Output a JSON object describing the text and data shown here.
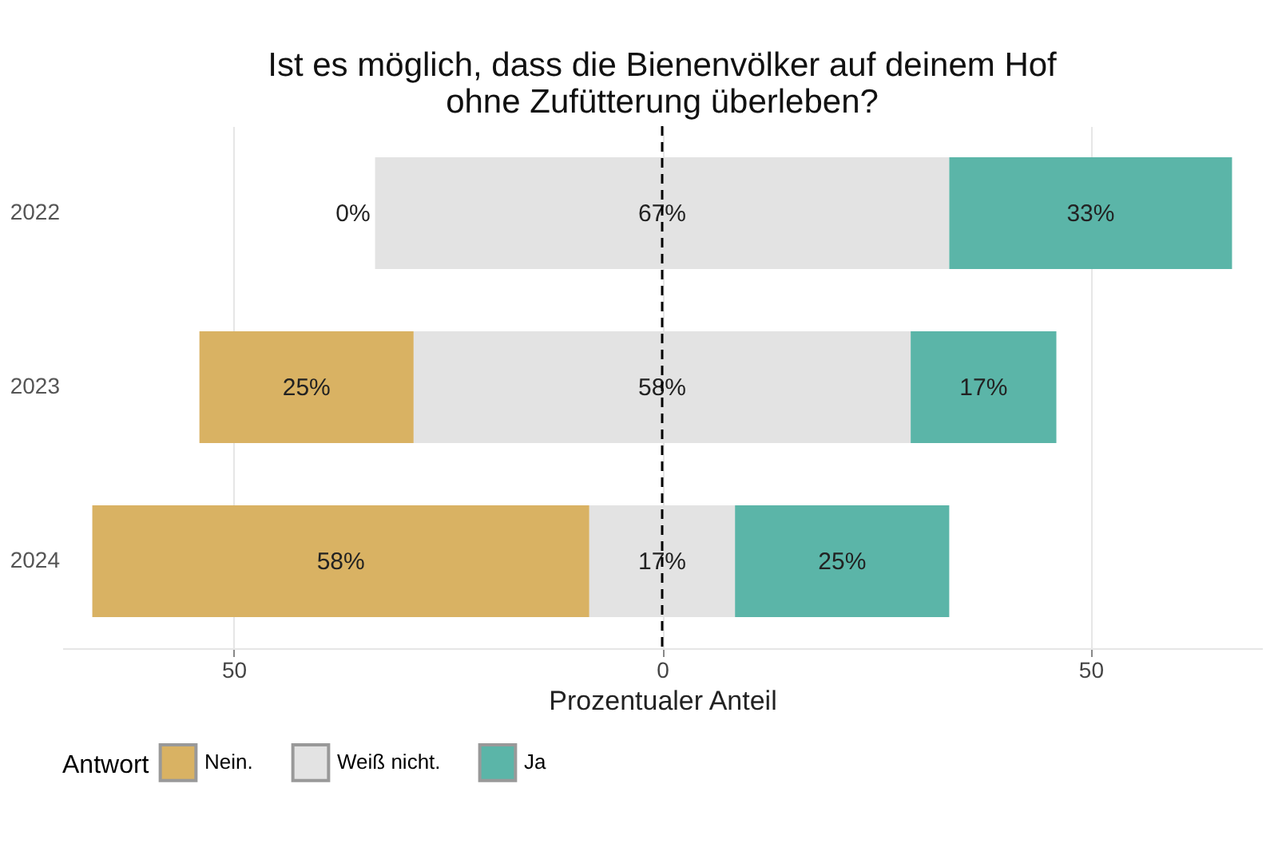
{
  "chart_data": {
    "type": "bar",
    "orientation": "horizontal",
    "title": "Ist es möglich, dass die Bienenvölker auf deinem Hof\nohne Zufütterung überleben?",
    "xlabel": "Prozentualer Anteil",
    "legend_title": "Antwort",
    "categories": [
      "2022",
      "2023",
      "2024"
    ],
    "series": [
      {
        "name": "Nein.",
        "color": "#d9b263",
        "values": [
          null,
          25,
          58
        ],
        "base": [
          null,
          -54,
          -66.5
        ],
        "value_labels": [
          null,
          "25%",
          "58%"
        ]
      },
      {
        "name": "Weiß nicht.",
        "color": "#e3e3e3",
        "values": [
          67,
          58,
          17
        ],
        "base": [
          -33.5,
          -29,
          -8.5
        ],
        "value_labels": [
          "67%",
          "58%",
          "17%"
        ]
      },
      {
        "name": "Ja",
        "color": "#5bb5a8",
        "values": [
          33,
          17,
          25
        ],
        "base": [
          33.5,
          29,
          8.5
        ],
        "value_labels": [
          "33%",
          "17%",
          "25%"
        ]
      }
    ],
    "xlim": [
      -70,
      70
    ],
    "xticks": [
      {
        "value": -50,
        "label": "50"
      },
      0,
      50
    ],
    "grid": "x",
    "annotations": [
      {
        "text": "0%",
        "x": -33.5,
        "y": "2022"
      }
    ],
    "legend": "bottom",
    "ref_lines": [
      {
        "axis": "x",
        "value": 0,
        "line_style": "dashed",
        "color": "#000000"
      }
    ]
  }
}
